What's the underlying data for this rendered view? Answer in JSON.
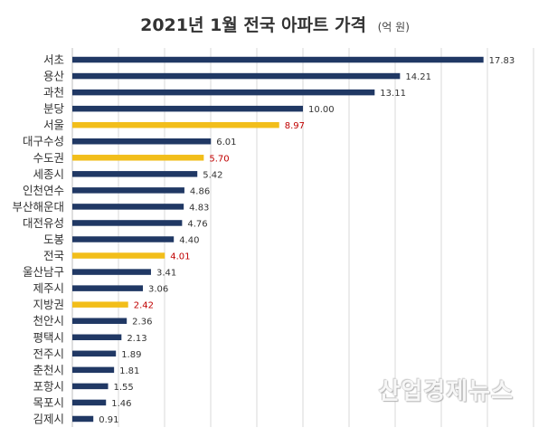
{
  "chart_data": {
    "type": "bar",
    "orientation": "horizontal",
    "title": "2021년 1월 전국 아파트 가격",
    "unit": "(억 원)",
    "categories": [
      "서초",
      "용산",
      "과천",
      "분당",
      "서울",
      "대구수성",
      "수도권",
      "세종시",
      "인천연수",
      "부산해운대",
      "대전유성",
      "도봉",
      "전국",
      "울산남구",
      "제주시",
      "지방권",
      "천안시",
      "평택시",
      "전주시",
      "춘천시",
      "포항시",
      "목포시",
      "김제시"
    ],
    "values": [
      17.83,
      14.21,
      13.11,
      10.0,
      8.97,
      6.01,
      5.7,
      5.42,
      4.86,
      4.83,
      4.76,
      4.4,
      4.01,
      3.41,
      3.06,
      2.42,
      2.36,
      2.13,
      1.89,
      1.81,
      1.55,
      1.46,
      0.91
    ],
    "value_labels": [
      "17.83",
      "14.21",
      "13.11",
      "10.00",
      "8.97",
      "6.01",
      "5.70",
      "5.42",
      "4.86",
      "4.83",
      "4.76",
      "4.40",
      "4.01",
      "3.41",
      "3.06",
      "2.42",
      "2.36",
      "2.13",
      "1.89",
      "1.81",
      "1.55",
      "1.46",
      "0.91"
    ],
    "highlighted": [
      "서울",
      "수도권",
      "전국",
      "지방권"
    ],
    "xlim": [
      0,
      20
    ],
    "grid": true,
    "colors": {
      "bar": "#203864",
      "highlight": "#F2BE1A",
      "highlight_label": "#C00000",
      "label": "#333333"
    }
  },
  "watermark": "산업경제뉴스"
}
